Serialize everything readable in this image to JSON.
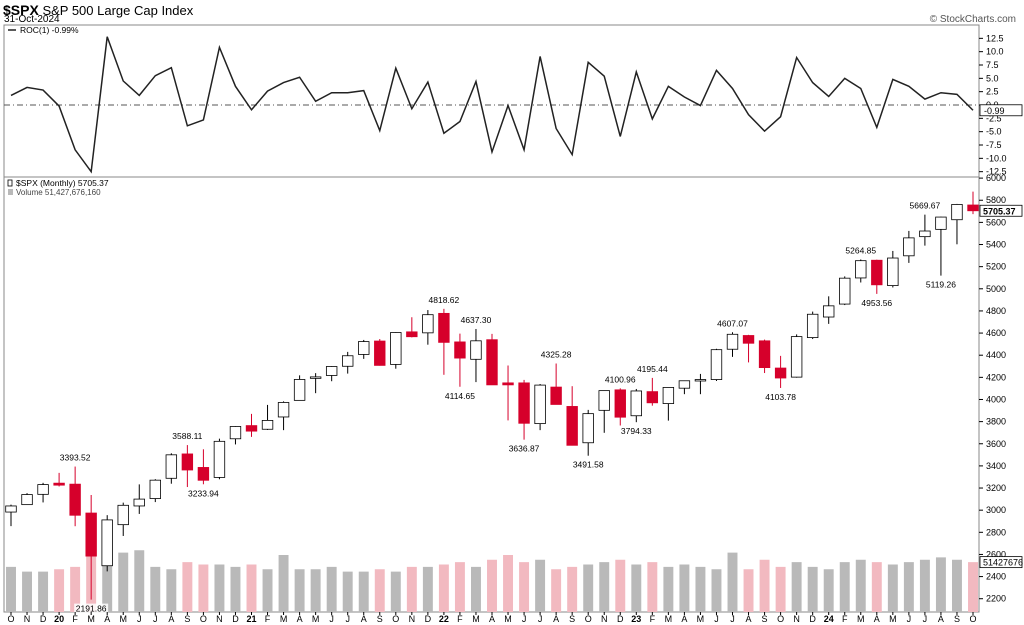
{
  "header": {
    "symbol": "$SPX",
    "name": "S&P 500 Large Cap Index",
    "date": "31-Oct-2024",
    "brand": "© StockCharts.com"
  },
  "colors": {
    "up": "#ffffff",
    "down": "#d6002b",
    "vol_up": "#b9b9b9",
    "vol_down": "#f2b9c0",
    "line": "#222222"
  },
  "chart_data": [
    {
      "type": "line",
      "name": "ROC(1)",
      "legend": "ROC(1) -0.99%",
      "last_value_label": "-0.99",
      "yticks": [
        12.5,
        10.0,
        7.5,
        5.0,
        2.5,
        0.0,
        -2.5,
        -5.0,
        -7.5,
        -10.0,
        -12.5
      ],
      "ylim": [
        -13.5,
        15
      ],
      "values": [
        1.8,
        3.3,
        2.8,
        -0.2,
        -8.4,
        -12.5,
        12.8,
        4.5,
        1.8,
        5.5,
        7.0,
        -3.9,
        -2.8,
        10.8,
        3.5,
        -0.9,
        2.6,
        4.2,
        5.2,
        0.7,
        2.3,
        2.3,
        2.7,
        -4.8,
        6.9,
        -0.7,
        4.3,
        -5.3,
        -3.1,
        4.4,
        -8.8,
        -0.1,
        -8.4,
        9.1,
        -4.4,
        -9.3,
        8.0,
        5.4,
        -5.9,
        6.2,
        -2.6,
        3.5,
        1.5,
        -0.1,
        6.5,
        3.1,
        -1.8,
        -4.9,
        -2.2,
        8.9,
        4.2,
        1.6,
        5.0,
        3.1,
        -4.2,
        4.8,
        3.5,
        1.1,
        2.3,
        2.0,
        -0.99
      ]
    },
    {
      "type": "candlestick",
      "title": "$SPX (Monthly) 5705.37",
      "volume_legend": "Volume 51,427,676,160",
      "last_price_label": "5705.37",
      "last_volume_label": "51427676",
      "x_labels": [
        "O",
        "N",
        "D",
        "20",
        "F",
        "M",
        "A",
        "M",
        "J",
        "J",
        "A",
        "S",
        "O",
        "N",
        "D",
        "21",
        "F",
        "M",
        "A",
        "M",
        "J",
        "J",
        "A",
        "S",
        "O",
        "N",
        "D",
        "22",
        "F",
        "M",
        "A",
        "M",
        "J",
        "J",
        "A",
        "S",
        "O",
        "N",
        "D",
        "23",
        "F",
        "M",
        "A",
        "M",
        "J",
        "J",
        "A",
        "S",
        "O",
        "N",
        "D",
        "24",
        "F",
        "M",
        "A",
        "M",
        "J",
        "J",
        "A",
        "S",
        "O"
      ],
      "yticks": [
        2200,
        2400,
        2600,
        2800,
        3000,
        3200,
        3400,
        3600,
        3800,
        4000,
        4200,
        4400,
        4600,
        4800,
        5000,
        5200,
        5400,
        5600,
        5800,
        6000
      ],
      "ylim": [
        2080,
        6010
      ],
      "ohlc": [
        [
          2983,
          3050,
          2856,
          3038
        ],
        [
          3050,
          3154,
          3050,
          3141
        ],
        [
          3143,
          3247,
          3070,
          3231
        ],
        [
          3244,
          3337,
          3214,
          3226
        ],
        [
          3235,
          3394,
          2855,
          2954
        ],
        [
          2974,
          3137,
          2192,
          2585
        ],
        [
          2498,
          2955,
          2447,
          2912
        ],
        [
          2869,
          3068,
          2767,
          3044
        ],
        [
          3038,
          3233,
          2966,
          3100
        ],
        [
          3105,
          3280,
          3073,
          3271
        ],
        [
          3288,
          3514,
          3239,
          3500
        ],
        [
          3508,
          3588,
          3209,
          3363
        ],
        [
          3386,
          3550,
          3234,
          3270
        ],
        [
          3296,
          3646,
          3279,
          3622
        ],
        [
          3645,
          3760,
          3594,
          3756
        ],
        [
          3764,
          3870,
          3662,
          3714
        ],
        [
          3731,
          3951,
          3725,
          3811
        ],
        [
          3842,
          3983,
          3723,
          3973
        ],
        [
          3992,
          4218,
          3992,
          4181
        ],
        [
          4191,
          4238,
          4057,
          4204
        ],
        [
          4217,
          4302,
          4165,
          4298
        ],
        [
          4300,
          4430,
          4234,
          4395
        ],
        [
          4407,
          4538,
          4367,
          4523
        ],
        [
          4528,
          4546,
          4306,
          4308
        ],
        [
          4317,
          4608,
          4278,
          4605
        ],
        [
          4611,
          4743,
          4561,
          4567
        ],
        [
          4602,
          4808,
          4495,
          4766
        ],
        [
          4778,
          4819,
          4223,
          4516
        ],
        [
          4520,
          4595,
          4115,
          4374
        ],
        [
          4363,
          4637,
          4157,
          4530
        ],
        [
          4540,
          4593,
          4131,
          4132
        ],
        [
          4150,
          4307,
          3811,
          4132
        ],
        [
          4150,
          4177,
          3637,
          3785
        ],
        [
          3782,
          4140,
          3723,
          4130
        ],
        [
          4112,
          4325,
          3955,
          3955
        ],
        [
          3937,
          4120,
          3584,
          3586
        ],
        [
          3609,
          3906,
          3492,
          3872
        ],
        [
          3902,
          4080,
          3699,
          4080
        ],
        [
          4087,
          4101,
          3765,
          3840
        ],
        [
          3853,
          4095,
          3795,
          4077
        ],
        [
          4071,
          4195,
          3944,
          3970
        ],
        [
          3963,
          4111,
          3809,
          4109
        ],
        [
          4102,
          4170,
          4048,
          4169
        ],
        [
          4167,
          4231,
          4048,
          4180
        ],
        [
          4180,
          4458,
          4167,
          4450
        ],
        [
          4454,
          4607,
          4385,
          4589
        ],
        [
          4578,
          4584,
          4335,
          4508
        ],
        [
          4530,
          4541,
          4239,
          4288
        ],
        [
          4284,
          4394,
          4104,
          4194
        ],
        [
          4202,
          4588,
          4197,
          4568
        ],
        [
          4559,
          4794,
          4546,
          4770
        ],
        [
          4745,
          4932,
          4683,
          4846
        ],
        [
          4862,
          5112,
          4853,
          5096
        ],
        [
          5098,
          5265,
          5057,
          5254
        ],
        [
          5258,
          5263,
          4954,
          5036
        ],
        [
          5029,
          5342,
          5012,
          5278
        ],
        [
          5298,
          5523,
          5234,
          5460
        ],
        [
          5471,
          5670,
          5390,
          5522
        ],
        [
          5537,
          5651,
          5119,
          5648
        ],
        [
          5624,
          5767,
          5402,
          5762
        ],
        [
          5757,
          5878,
          5675,
          5705
        ]
      ],
      "volume": [
        2.95,
        2.85,
        2.85,
        2.9,
        2.95,
        3.85,
        3.15,
        3.25,
        3.3,
        2.95,
        2.9,
        3.05,
        3.0,
        3.0,
        2.95,
        3.0,
        2.9,
        3.2,
        2.9,
        2.9,
        2.95,
        2.85,
        2.85,
        2.9,
        2.85,
        2.95,
        2.95,
        3.0,
        3.05,
        2.95,
        3.1,
        3.2,
        3.05,
        3.1,
        2.9,
        2.95,
        3.0,
        3.05,
        3.1,
        3.0,
        3.05,
        2.95,
        3.0,
        2.95,
        2.9,
        3.25,
        2.9,
        3.1,
        2.95,
        3.05,
        2.95,
        2.9,
        3.05,
        3.1,
        3.05,
        3.0,
        3.05,
        3.1,
        3.15,
        3.1,
        3.05
      ],
      "annotations": [
        {
          "i": 4,
          "pos": "high",
          "text": "3393.52"
        },
        {
          "i": 5,
          "pos": "low",
          "text": "2191.86"
        },
        {
          "i": 11,
          "pos": "high",
          "text": "3588.11"
        },
        {
          "i": 12,
          "pos": "low",
          "text": "3233.94"
        },
        {
          "i": 27,
          "pos": "high",
          "text": "4818.62"
        },
        {
          "i": 28,
          "pos": "low",
          "text": "4114.65"
        },
        {
          "i": 29,
          "pos": "high",
          "text": "4637.30"
        },
        {
          "i": 32,
          "pos": "low",
          "text": "3636.87"
        },
        {
          "i": 34,
          "pos": "high",
          "text": "4325.28"
        },
        {
          "i": 36,
          "pos": "low",
          "text": "3491.58"
        },
        {
          "i": 38,
          "pos": "high",
          "text": "4100.96"
        },
        {
          "i": 39,
          "pos": "low",
          "text": "3794.33"
        },
        {
          "i": 40,
          "pos": "high",
          "text": "4195.44"
        },
        {
          "i": 45,
          "pos": "high",
          "text": "4607.07"
        },
        {
          "i": 48,
          "pos": "low",
          "text": "4103.78"
        },
        {
          "i": 53,
          "pos": "high",
          "text": "5264.85"
        },
        {
          "i": 54,
          "pos": "low",
          "text": "4953.56"
        },
        {
          "i": 57,
          "pos": "high",
          "text": "5669.67"
        },
        {
          "i": 58,
          "pos": "low",
          "text": "5119.26"
        }
      ]
    }
  ]
}
